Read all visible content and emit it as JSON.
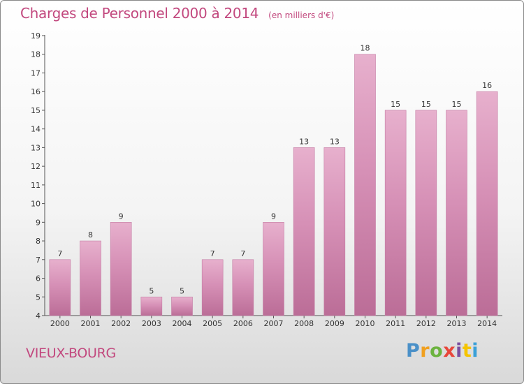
{
  "header": {
    "title": "Charges de Personnel 2000 à 2014",
    "subtitle": "(en milliers d'€)"
  },
  "footer": {
    "commune": "VIEUX-BOURG",
    "brand": "Proxiti",
    "brand_colors": [
      "#4a90c8",
      "#f0a020",
      "#6cb33f",
      "#e8463a",
      "#7a4fa0",
      "#f5c400",
      "#3aa0d8"
    ]
  },
  "chart_data": {
    "type": "bar",
    "title": "Charges de Personnel 2000 à 2014",
    "subtitle": "(en milliers d'€)",
    "xlabel": "",
    "ylabel": "",
    "categories": [
      "2000",
      "2001",
      "2002",
      "2003",
      "2004",
      "2005",
      "2006",
      "2007",
      "2008",
      "2009",
      "2010",
      "2011",
      "2012",
      "2013",
      "2014"
    ],
    "values": [
      7,
      8,
      9,
      5,
      5,
      7,
      7,
      9,
      13,
      13,
      18,
      15,
      15,
      15,
      16
    ],
    "ylim": [
      4,
      19
    ],
    "yticks": [
      4,
      5,
      6,
      7,
      8,
      9,
      10,
      11,
      12,
      13,
      14,
      15,
      16,
      17,
      18,
      19
    ],
    "grid": false,
    "legend": "none",
    "bar_color": "#d690b6",
    "bar_color_top": "#e7b0cd",
    "bar_color_bottom": "#bb6d97"
  }
}
